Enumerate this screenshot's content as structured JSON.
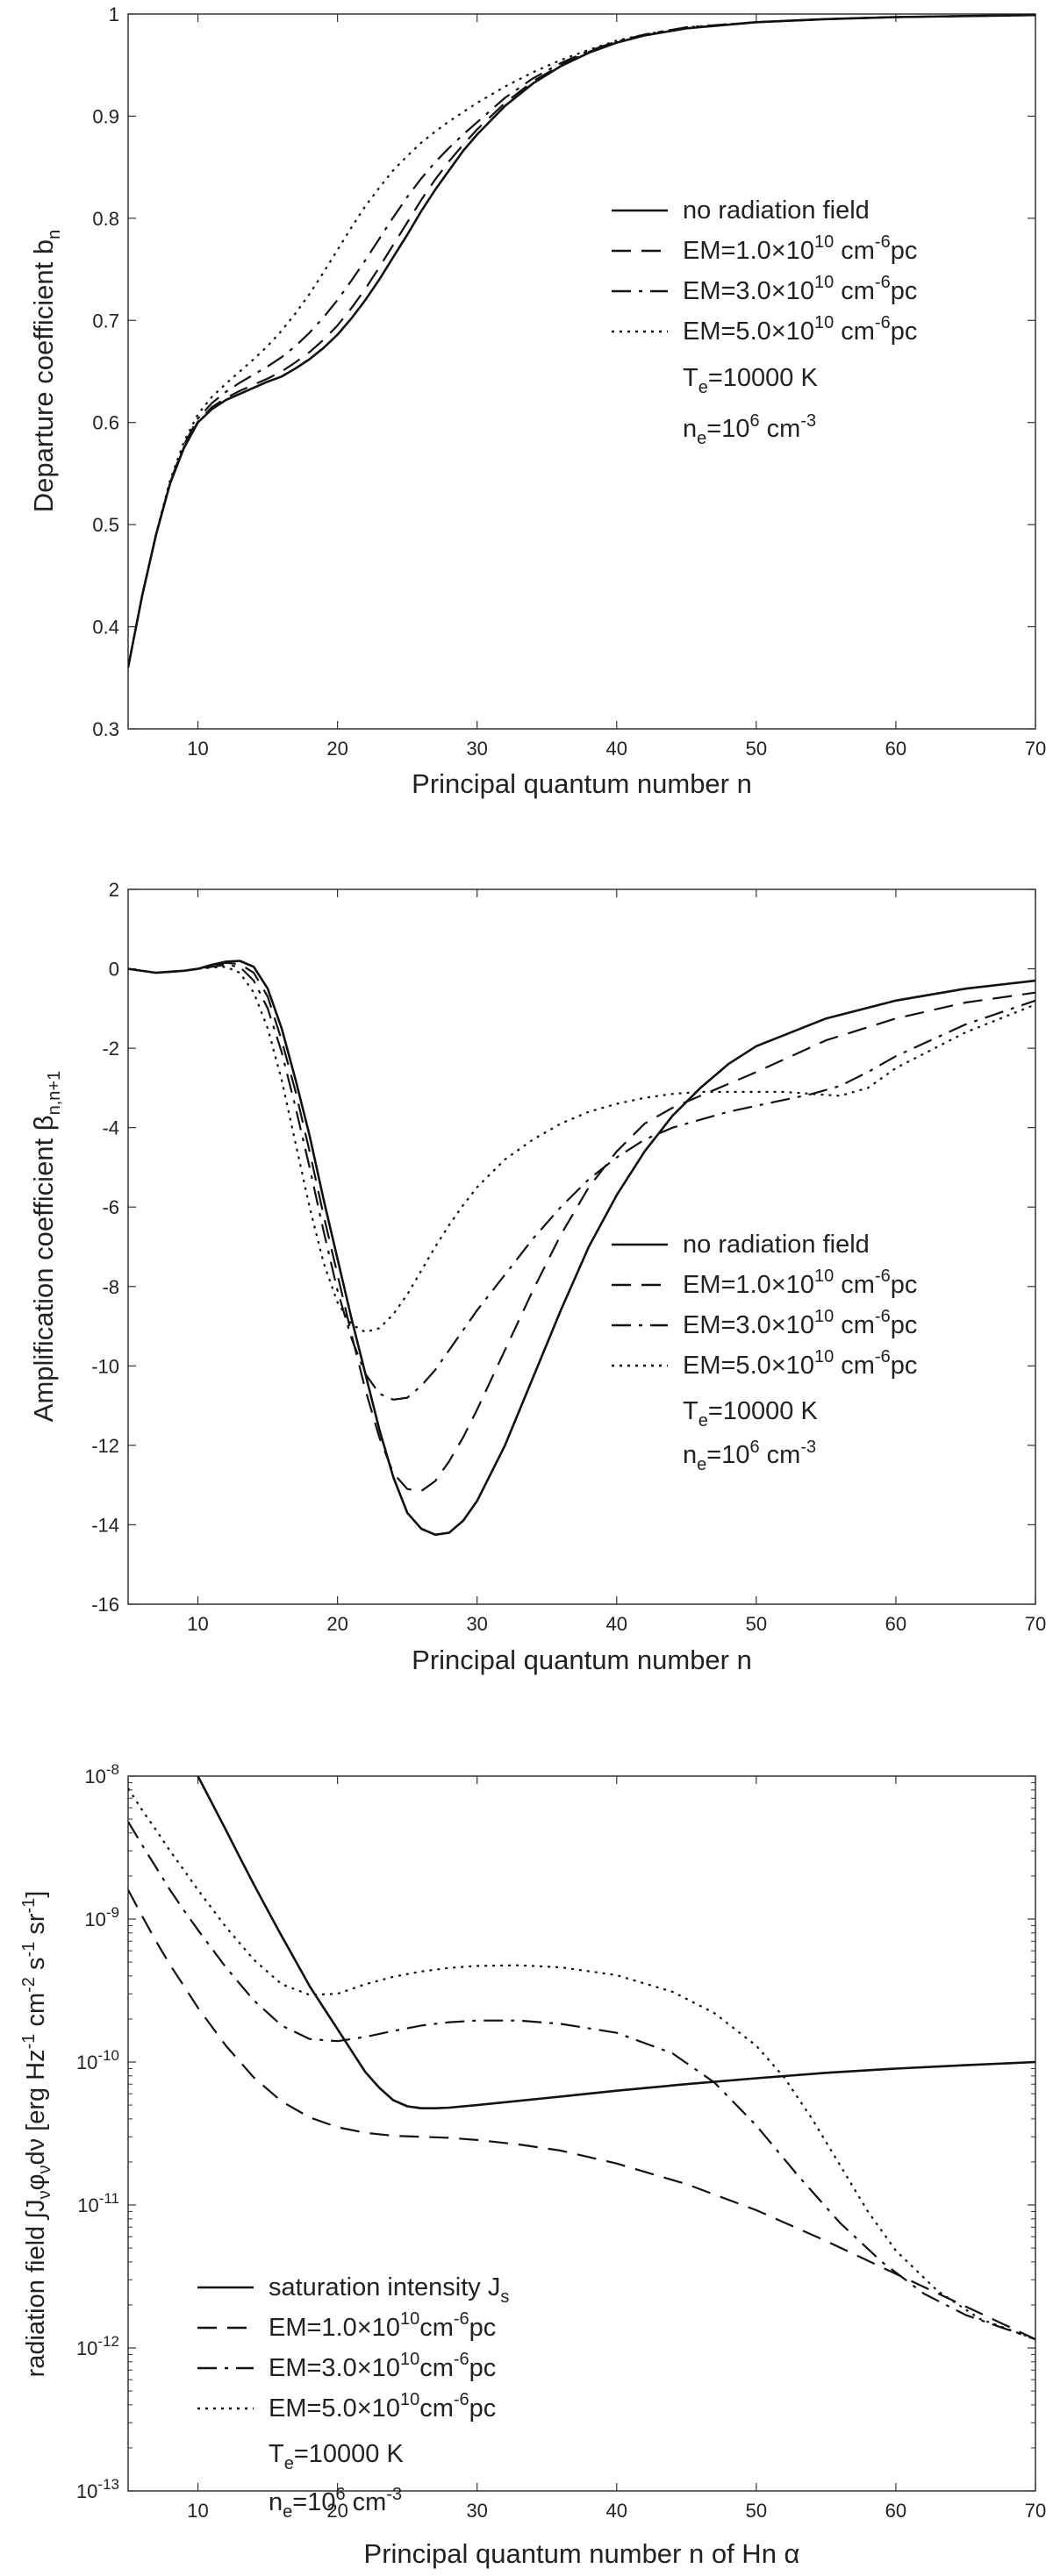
{
  "chart_data": [
    {
      "type": "line",
      "xlabel": "Principal quantum number n",
      "ylabel": {
        "main": "Departure coefficient b",
        "sub": "n"
      },
      "xlim": [
        5,
        70
      ],
      "ylim": [
        0.3,
        1.0
      ],
      "xticks": [
        "10",
        "20",
        "30",
        "40",
        "50",
        "60",
        "70"
      ],
      "yticks": [
        "0.3",
        "0.4",
        "0.5",
        "0.6",
        "0.7",
        "0.8",
        "0.9",
        "1"
      ],
      "grid": false,
      "legend_position": "right",
      "series": [
        {
          "name": "no radiation field",
          "dash": "solid",
          "x": [
            5,
            6,
            7,
            8,
            9,
            10,
            11,
            12,
            13,
            14,
            15,
            16,
            17,
            18,
            19,
            20,
            21,
            22,
            23,
            24,
            25,
            26,
            27,
            28,
            29,
            30,
            32,
            34,
            36,
            38,
            40,
            42,
            45,
            50,
            55,
            60,
            65,
            70
          ],
          "y": [
            0.36,
            0.43,
            0.49,
            0.54,
            0.575,
            0.6,
            0.613,
            0.622,
            0.628,
            0.634,
            0.64,
            0.645,
            0.653,
            0.662,
            0.673,
            0.686,
            0.702,
            0.72,
            0.74,
            0.762,
            0.784,
            0.807,
            0.828,
            0.847,
            0.866,
            0.882,
            0.91,
            0.932,
            0.949,
            0.962,
            0.972,
            0.979,
            0.986,
            0.992,
            0.995,
            0.997,
            0.998,
            0.999
          ]
        },
        {
          "name": "EM=1.0×10¹⁰ cm⁻⁶pc",
          "dash": "dash",
          "x": [
            5,
            6,
            7,
            8,
            9,
            10,
            11,
            12,
            13,
            14,
            15,
            16,
            17,
            18,
            19,
            20,
            21,
            22,
            23,
            24,
            25,
            26,
            27,
            28,
            29,
            30,
            32,
            34,
            36,
            38,
            40,
            42,
            45,
            50,
            55,
            60,
            65,
            70
          ],
          "y": [
            0.36,
            0.43,
            0.49,
            0.54,
            0.576,
            0.601,
            0.615,
            0.624,
            0.631,
            0.637,
            0.643,
            0.65,
            0.659,
            0.669,
            0.681,
            0.695,
            0.712,
            0.731,
            0.752,
            0.774,
            0.796,
            0.818,
            0.838,
            0.856,
            0.872,
            0.887,
            0.913,
            0.934,
            0.95,
            0.963,
            0.972,
            0.979,
            0.986,
            0.992,
            0.995,
            0.997,
            0.998,
            0.999
          ]
        },
        {
          "name": "EM=3.0×10¹⁰ cm⁻⁶pc",
          "dash": "dashdot",
          "x": [
            5,
            6,
            7,
            8,
            9,
            10,
            11,
            12,
            13,
            14,
            15,
            16,
            17,
            18,
            19,
            20,
            21,
            22,
            23,
            24,
            25,
            26,
            27,
            28,
            29,
            30,
            32,
            34,
            36,
            38,
            40,
            42,
            45,
            50,
            55,
            60,
            65,
            70
          ],
          "y": [
            0.36,
            0.43,
            0.49,
            0.541,
            0.578,
            0.604,
            0.619,
            0.63,
            0.639,
            0.647,
            0.655,
            0.664,
            0.675,
            0.688,
            0.703,
            0.72,
            0.739,
            0.759,
            0.78,
            0.801,
            0.821,
            0.839,
            0.855,
            0.869,
            0.882,
            0.894,
            0.918,
            0.937,
            0.952,
            0.964,
            0.973,
            0.98,
            0.987,
            0.992,
            0.995,
            0.997,
            0.998,
            0.999
          ]
        },
        {
          "name": "EM=5.0×10¹⁰ cm⁻⁶pc",
          "dash": "dot",
          "x": [
            5,
            6,
            7,
            8,
            9,
            10,
            11,
            12,
            13,
            14,
            15,
            16,
            17,
            18,
            19,
            20,
            21,
            22,
            23,
            24,
            25,
            26,
            27,
            28,
            29,
            30,
            32,
            34,
            36,
            38,
            40,
            42,
            45,
            50,
            55,
            60,
            65,
            70
          ],
          "y": [
            0.36,
            0.43,
            0.491,
            0.543,
            0.581,
            0.608,
            0.625,
            0.638,
            0.65,
            0.662,
            0.675,
            0.69,
            0.707,
            0.726,
            0.747,
            0.769,
            0.791,
            0.812,
            0.83,
            0.847,
            0.861,
            0.874,
            0.885,
            0.895,
            0.904,
            0.913,
            0.929,
            0.943,
            0.955,
            0.965,
            0.974,
            0.98,
            0.987,
            0.992,
            0.995,
            0.997,
            0.998,
            0.999
          ]
        }
      ],
      "annotations": [
        {
          "main": "T",
          "sub": "e",
          "rest": "=10000 K"
        },
        {
          "main": "n",
          "sub": "e",
          "mid": "=10",
          "sup": "6",
          "rest": " cm",
          "sup2": "-3"
        }
      ]
    },
    {
      "type": "line",
      "xlabel": "Principal quantum number n",
      "ylabel": {
        "main": "Amplification coefficient  β",
        "sub": "n,n+1"
      },
      "xlim": [
        5,
        70
      ],
      "ylim": [
        -16,
        2
      ],
      "xticks": [
        "10",
        "20",
        "30",
        "40",
        "50",
        "60",
        "70"
      ],
      "yticks": [
        "-16",
        "-14",
        "-12",
        "-10",
        "-8",
        "-6",
        "-4",
        "-2",
        "0",
        "2"
      ],
      "grid": false,
      "legend_position": "right",
      "series": [
        {
          "name": "no radiation field",
          "dash": "solid",
          "x": [
            5,
            7,
            9,
            10,
            11,
            12,
            13,
            14,
            15,
            16,
            17,
            18,
            19,
            20,
            21,
            22,
            23,
            24,
            25,
            26,
            27,
            28,
            29,
            30,
            32,
            34,
            36,
            38,
            40,
            42,
            44,
            46,
            48,
            50,
            55,
            60,
            65,
            70
          ],
          "y": [
            0,
            -0.1,
            -0.05,
            0,
            0.1,
            0.18,
            0.2,
            0.05,
            -0.5,
            -1.5,
            -2.8,
            -4.2,
            -5.8,
            -7.3,
            -8.8,
            -10.2,
            -11.6,
            -12.8,
            -13.7,
            -14.1,
            -14.25,
            -14.2,
            -13.9,
            -13.4,
            -12,
            -10.3,
            -8.6,
            -7,
            -5.7,
            -4.6,
            -3.7,
            -3.0,
            -2.4,
            -1.95,
            -1.25,
            -0.8,
            -0.5,
            -0.3
          ]
        },
        {
          "name": "EM=1.0×10¹⁰ cm⁻⁶pc",
          "dash": "dash",
          "x": [
            5,
            7,
            9,
            10,
            11,
            12,
            13,
            14,
            15,
            16,
            17,
            18,
            19,
            20,
            21,
            22,
            23,
            24,
            25,
            26,
            27,
            28,
            29,
            30,
            32,
            34,
            36,
            38,
            40,
            42,
            44,
            46,
            48,
            50,
            55,
            60,
            65,
            70
          ],
          "y": [
            0,
            -0.1,
            -0.05,
            0,
            0.08,
            0.15,
            0.12,
            -0.1,
            -0.7,
            -1.8,
            -3.1,
            -4.6,
            -6.2,
            -7.7,
            -9.2,
            -10.6,
            -11.8,
            -12.7,
            -13.1,
            -13.15,
            -12.9,
            -12.4,
            -11.8,
            -11.1,
            -9.6,
            -8.1,
            -6.7,
            -5.5,
            -4.6,
            -3.9,
            -3.5,
            -3.2,
            -2.9,
            -2.6,
            -1.8,
            -1.25,
            -0.85,
            -0.6
          ]
        },
        {
          "name": "EM=3.0×10¹⁰ cm⁻⁶pc",
          "dash": "dashdot",
          "x": [
            5,
            7,
            9,
            10,
            11,
            12,
            13,
            14,
            15,
            16,
            17,
            18,
            19,
            20,
            21,
            22,
            23,
            24,
            25,
            26,
            27,
            28,
            29,
            30,
            32,
            34,
            36,
            38,
            40,
            42,
            44,
            46,
            48,
            50,
            52,
            54,
            56,
            58,
            60,
            65,
            70
          ],
          "y": [
            0,
            -0.1,
            -0.05,
            0,
            0.05,
            0.1,
            0.05,
            -0.3,
            -1.0,
            -2.1,
            -3.5,
            -5.0,
            -6.6,
            -8.1,
            -9.3,
            -10.2,
            -10.7,
            -10.85,
            -10.8,
            -10.5,
            -10.1,
            -9.6,
            -9.1,
            -8.6,
            -7.7,
            -6.8,
            -6.0,
            -5.3,
            -4.75,
            -4.3,
            -4.0,
            -3.8,
            -3.6,
            -3.45,
            -3.3,
            -3.15,
            -2.95,
            -2.6,
            -2.2,
            -1.4,
            -0.8
          ]
        },
        {
          "name": "EM=5.0×10¹⁰ cm⁻⁶pc",
          "dash": "dot",
          "x": [
            5,
            7,
            9,
            10,
            11,
            12,
            13,
            14,
            15,
            16,
            17,
            18,
            19,
            20,
            21,
            22,
            23,
            24,
            25,
            26,
            27,
            28,
            29,
            30,
            32,
            34,
            36,
            38,
            40,
            42,
            44,
            46,
            48,
            50,
            52,
            54,
            56,
            58,
            60,
            65,
            70
          ],
          "y": [
            0,
            -0.1,
            -0.05,
            0,
            0.03,
            0.05,
            -0.1,
            -0.6,
            -1.5,
            -2.8,
            -4.4,
            -6.0,
            -7.4,
            -8.4,
            -8.95,
            -9.15,
            -9.05,
            -8.7,
            -8.2,
            -7.6,
            -7.0,
            -6.45,
            -5.95,
            -5.5,
            -4.8,
            -4.3,
            -3.9,
            -3.6,
            -3.4,
            -3.25,
            -3.15,
            -3.1,
            -3.1,
            -3.1,
            -3.1,
            -3.15,
            -3.2,
            -3.0,
            -2.5,
            -1.6,
            -0.9
          ]
        }
      ],
      "annotations": [
        {
          "main": "T",
          "sub": "e",
          "rest": "=10000 K"
        },
        {
          "main": "n",
          "sub": "e",
          "mid": "=10",
          "sup": "6",
          "rest": " cm",
          "sup2": "-3"
        }
      ]
    },
    {
      "type": "line",
      "xlabel": "Principal quantum number n of Hn α",
      "ylabel": "radiation field ∫J_ν φ_ν dν [erg Hz⁻¹ cm⁻² s⁻¹ sr⁻¹]",
      "ylabel_parts": {
        "lead": "radiation field ∫J",
        "nu1": "ν",
        "phi": "φ",
        "nu2": "ν",
        "dnu": "dν [erg Hz",
        "m1": "-1",
        "cm": " cm",
        "m2": "-2",
        "s": " s",
        "m3": "-1",
        "sr": " sr",
        "m4": "-1",
        "end": "]"
      },
      "xlim": [
        5,
        70
      ],
      "ylim": [
        1e-13,
        1e-08
      ],
      "yscale": "log",
      "xticks": [
        "10",
        "20",
        "30",
        "40",
        "50",
        "60",
        "70"
      ],
      "yticks": [
        {
          "base": "10",
          "exp": "-13"
        },
        {
          "base": "10",
          "exp": "-12"
        },
        {
          "base": "10",
          "exp": "-11"
        },
        {
          "base": "10",
          "exp": "-10"
        },
        {
          "base": "10",
          "exp": "-9"
        },
        {
          "base": "10",
          "exp": "-8"
        }
      ],
      "grid": false,
      "legend_position": "bottom-left",
      "series": [
        {
          "name": "saturation intensity J",
          "name_sub": "s",
          "dash": "solid",
          "x": [
            10,
            11,
            12,
            13,
            14,
            15,
            16,
            17,
            18,
            19,
            20,
            21,
            22,
            23,
            24,
            25,
            26,
            27,
            28,
            30,
            35,
            40,
            45,
            50,
            55,
            60,
            65,
            70
          ],
          "y": [
            1e-08,
            6.5e-09,
            4.2e-09,
            2.7e-09,
            1.75e-09,
            1.15e-09,
            7.6e-10,
            5.1e-10,
            3.4e-10,
            2.4e-10,
            1.7e-10,
            1.2e-10,
            8.5e-11,
            6.6e-11,
            5.4e-11,
            4.9e-11,
            4.75e-11,
            4.75e-11,
            4.8e-11,
            5e-11,
            5.6e-11,
            6.3e-11,
            7e-11,
            7.7e-11,
            8.4e-11,
            9e-11,
            9.5e-11,
            1e-10
          ]
        },
        {
          "name": "EM=1.0×10¹⁰cm⁻⁶pc",
          "dash": "dash",
          "x": [
            5,
            6,
            7,
            8,
            9,
            10,
            12,
            14,
            16,
            18,
            20,
            22,
            24,
            26,
            28,
            30,
            33,
            36,
            40,
            45,
            50,
            55,
            60,
            65,
            70
          ],
          "y": [
            1.6e-09,
            1.05e-09,
            7e-10,
            4.8e-10,
            3.4e-10,
            2.4e-10,
            1.3e-10,
            7.8e-11,
            5.3e-11,
            4.1e-11,
            3.5e-11,
            3.2e-11,
            3.05e-11,
            3e-11,
            2.95e-11,
            2.85e-11,
            2.65e-11,
            2.4e-11,
            1.95e-11,
            1.4e-11,
            9.2e-12,
            5.6e-12,
            3.3e-12,
            1.95e-12,
            1.15e-12
          ]
        },
        {
          "name": "EM=3.0×10¹⁰cm⁻⁶pc",
          "dash": "dashdot",
          "x": [
            5,
            6,
            7,
            8,
            9,
            10,
            12,
            14,
            16,
            18,
            20,
            22,
            24,
            26,
            28,
            30,
            33,
            36,
            40,
            44,
            47,
            50,
            53,
            56,
            59,
            62,
            65,
            70
          ],
          "y": [
            4.8e-09,
            3.3e-09,
            2.3e-09,
            1.6e-09,
            1.15e-09,
            8.4e-10,
            4.6e-10,
            2.7e-10,
            1.8e-10,
            1.45e-10,
            1.4e-10,
            1.5e-10,
            1.65e-10,
            1.8e-10,
            1.9e-10,
            1.95e-10,
            1.95e-10,
            1.85e-10,
            1.6e-10,
            1.15e-10,
            7.2e-11,
            3.6e-11,
            1.6e-11,
            7.5e-12,
            4e-12,
            2.4e-12,
            1.7e-12,
            1.15e-12
          ]
        },
        {
          "name": "EM=5.0×10¹⁰cm⁻⁶pc",
          "dash": "dot",
          "x": [
            5,
            6,
            7,
            8,
            9,
            10,
            12,
            14,
            16,
            18,
            20,
            22,
            24,
            26,
            28,
            30,
            33,
            36,
            40,
            44,
            47,
            50,
            52,
            54,
            56,
            58,
            60,
            63,
            66,
            70
          ],
          "y": [
            8.2e-09,
            5.8e-09,
            4.2e-09,
            3e-09,
            2.2e-09,
            1.6e-09,
            8.8e-10,
            5.2e-10,
            3.5e-10,
            2.95e-10,
            3e-10,
            3.5e-10,
            3.95e-10,
            4.3e-10,
            4.55e-10,
            4.7e-10,
            4.75e-10,
            4.6e-10,
            4.05e-10,
            3.1e-10,
            2.2e-10,
            1.3e-10,
            7.8e-11,
            4e-11,
            1.9e-11,
            9e-12,
            4.8e-12,
            2.5e-12,
            1.6e-12,
            1.15e-12
          ]
        }
      ],
      "annotations": [
        {
          "main": "T",
          "sub": "e",
          "rest": "=10000 K"
        },
        {
          "main": "n",
          "sub": "e",
          "mid": "=10",
          "sup": "6",
          "rest": " cm",
          "sup2": "-3"
        }
      ]
    }
  ]
}
